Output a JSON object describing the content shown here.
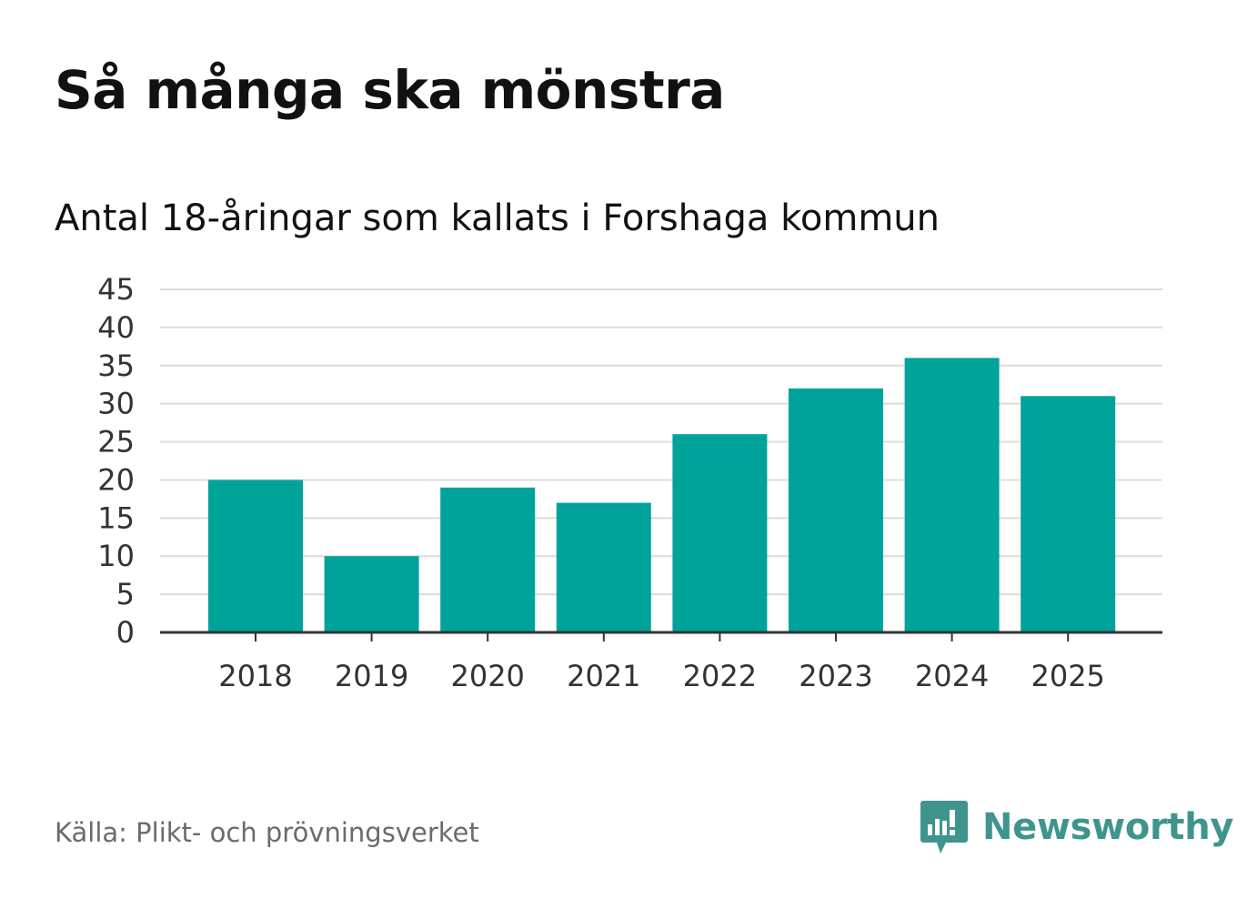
{
  "header": {
    "title": "Så många ska mönstra",
    "subtitle": "Antal 18-åringar som kallats i Forshaga kommun"
  },
  "footer": {
    "source": "Källa: Plikt- och prövningsverket",
    "brand": "Newsworthy",
    "brand_icon": "newsworthy-logo-icon"
  },
  "colors": {
    "bar": "#00a39a",
    "grid": "#dcdcdc",
    "axis": "#333333",
    "brand": "#3f958d"
  },
  "chart_data": {
    "type": "bar",
    "title": "Så många ska mönstra",
    "subtitle": "Antal 18-åringar som kallats i Forshaga kommun",
    "categories": [
      "2018",
      "2019",
      "2020",
      "2021",
      "2022",
      "2023",
      "2024",
      "2025"
    ],
    "values": [
      20,
      10,
      19,
      17,
      26,
      32,
      36,
      31
    ],
    "xlabel": "",
    "ylabel": "",
    "ylim": [
      0,
      45
    ],
    "yticks": [
      0,
      5,
      10,
      15,
      20,
      25,
      30,
      35,
      40,
      45
    ],
    "grid": true,
    "legend": "none"
  }
}
